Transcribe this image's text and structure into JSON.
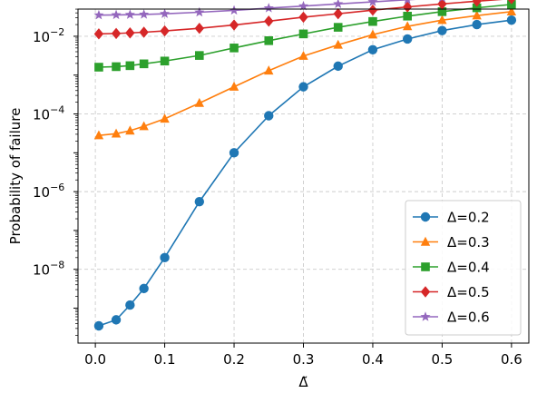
{
  "chart_data": {
    "type": "line",
    "title": "",
    "xlabel": "Δ̃",
    "ylabel": "Probability of failure",
    "yscale": "log",
    "xlim": [
      -0.025,
      0.625
    ],
    "ylim_log10": [
      -9.9,
      -1.3
    ],
    "grid": true,
    "legend_position": "lower-right",
    "x_ticks": [
      0.0,
      0.1,
      0.2,
      0.3,
      0.4,
      0.5,
      0.6
    ],
    "x_tick_labels": [
      "0.0",
      "0.1",
      "0.2",
      "0.3",
      "0.4",
      "0.5",
      "0.6"
    ],
    "y_ticks_log10": [
      -8,
      -6,
      -4,
      -2
    ],
    "y_tick_labels": [
      {
        "base": "10",
        "exp": "−8"
      },
      {
        "base": "10",
        "exp": "−6"
      },
      {
        "base": "10",
        "exp": "−4"
      },
      {
        "base": "10",
        "exp": "−2"
      }
    ],
    "series": [
      {
        "name": "Δ=0.2",
        "color": "#1f77b4",
        "marker": "circle",
        "x": [
          0.005,
          0.03,
          0.05,
          0.07,
          0.1,
          0.15,
          0.2,
          0.25,
          0.3,
          0.35,
          0.4,
          0.45,
          0.5,
          0.55,
          0.6
        ],
        "y": [
          3.5e-10,
          5e-10,
          1.2e-09,
          3.2e-09,
          2e-08,
          5.5e-07,
          1e-05,
          9e-05,
          0.0005,
          0.0017,
          0.0045,
          0.0085,
          0.014,
          0.02,
          0.026
        ]
      },
      {
        "name": "Δ=0.3",
        "color": "#ff7f0e",
        "marker": "triangle",
        "x": [
          0.005,
          0.03,
          0.05,
          0.07,
          0.1,
          0.15,
          0.2,
          0.25,
          0.3,
          0.35,
          0.4,
          0.45,
          0.5,
          0.55,
          0.6
        ],
        "y": [
          2.8e-05,
          3.1e-05,
          3.7e-05,
          4.8e-05,
          7.5e-05,
          0.00019,
          0.0005,
          0.0013,
          0.0031,
          0.006,
          0.011,
          0.018,
          0.026,
          0.034,
          0.043
        ]
      },
      {
        "name": "Δ=0.4",
        "color": "#2ca02c",
        "marker": "square",
        "x": [
          0.005,
          0.03,
          0.05,
          0.07,
          0.1,
          0.15,
          0.2,
          0.25,
          0.3,
          0.35,
          0.4,
          0.45,
          0.5,
          0.55,
          0.6
        ],
        "y": [
          0.0016,
          0.00165,
          0.00175,
          0.00195,
          0.0023,
          0.0032,
          0.005,
          0.0077,
          0.0115,
          0.017,
          0.024,
          0.033,
          0.043,
          0.054,
          0.066
        ]
      },
      {
        "name": "Δ=0.5",
        "color": "#d62728",
        "marker": "diamond",
        "x": [
          0.005,
          0.03,
          0.05,
          0.07,
          0.1,
          0.15,
          0.2,
          0.25,
          0.3,
          0.35,
          0.4,
          0.45,
          0.5,
          0.55,
          0.6
        ],
        "y": [
          0.0115,
          0.0118,
          0.0122,
          0.0127,
          0.0137,
          0.016,
          0.0195,
          0.0245,
          0.031,
          0.038,
          0.047,
          0.057,
          0.068,
          0.08,
          0.093
        ]
      },
      {
        "name": "Δ=0.6",
        "color": "#9467bd",
        "marker": "star",
        "x": [
          0.005,
          0.03,
          0.05,
          0.07,
          0.1,
          0.15,
          0.2,
          0.25,
          0.3,
          0.35,
          0.4,
          0.45,
          0.5,
          0.55,
          0.6
        ],
        "y": [
          0.035,
          0.0355,
          0.036,
          0.0365,
          0.038,
          0.0415,
          0.0465,
          0.053,
          0.06,
          0.068,
          0.077,
          0.087,
          0.098,
          0.11,
          0.122
        ]
      }
    ]
  }
}
